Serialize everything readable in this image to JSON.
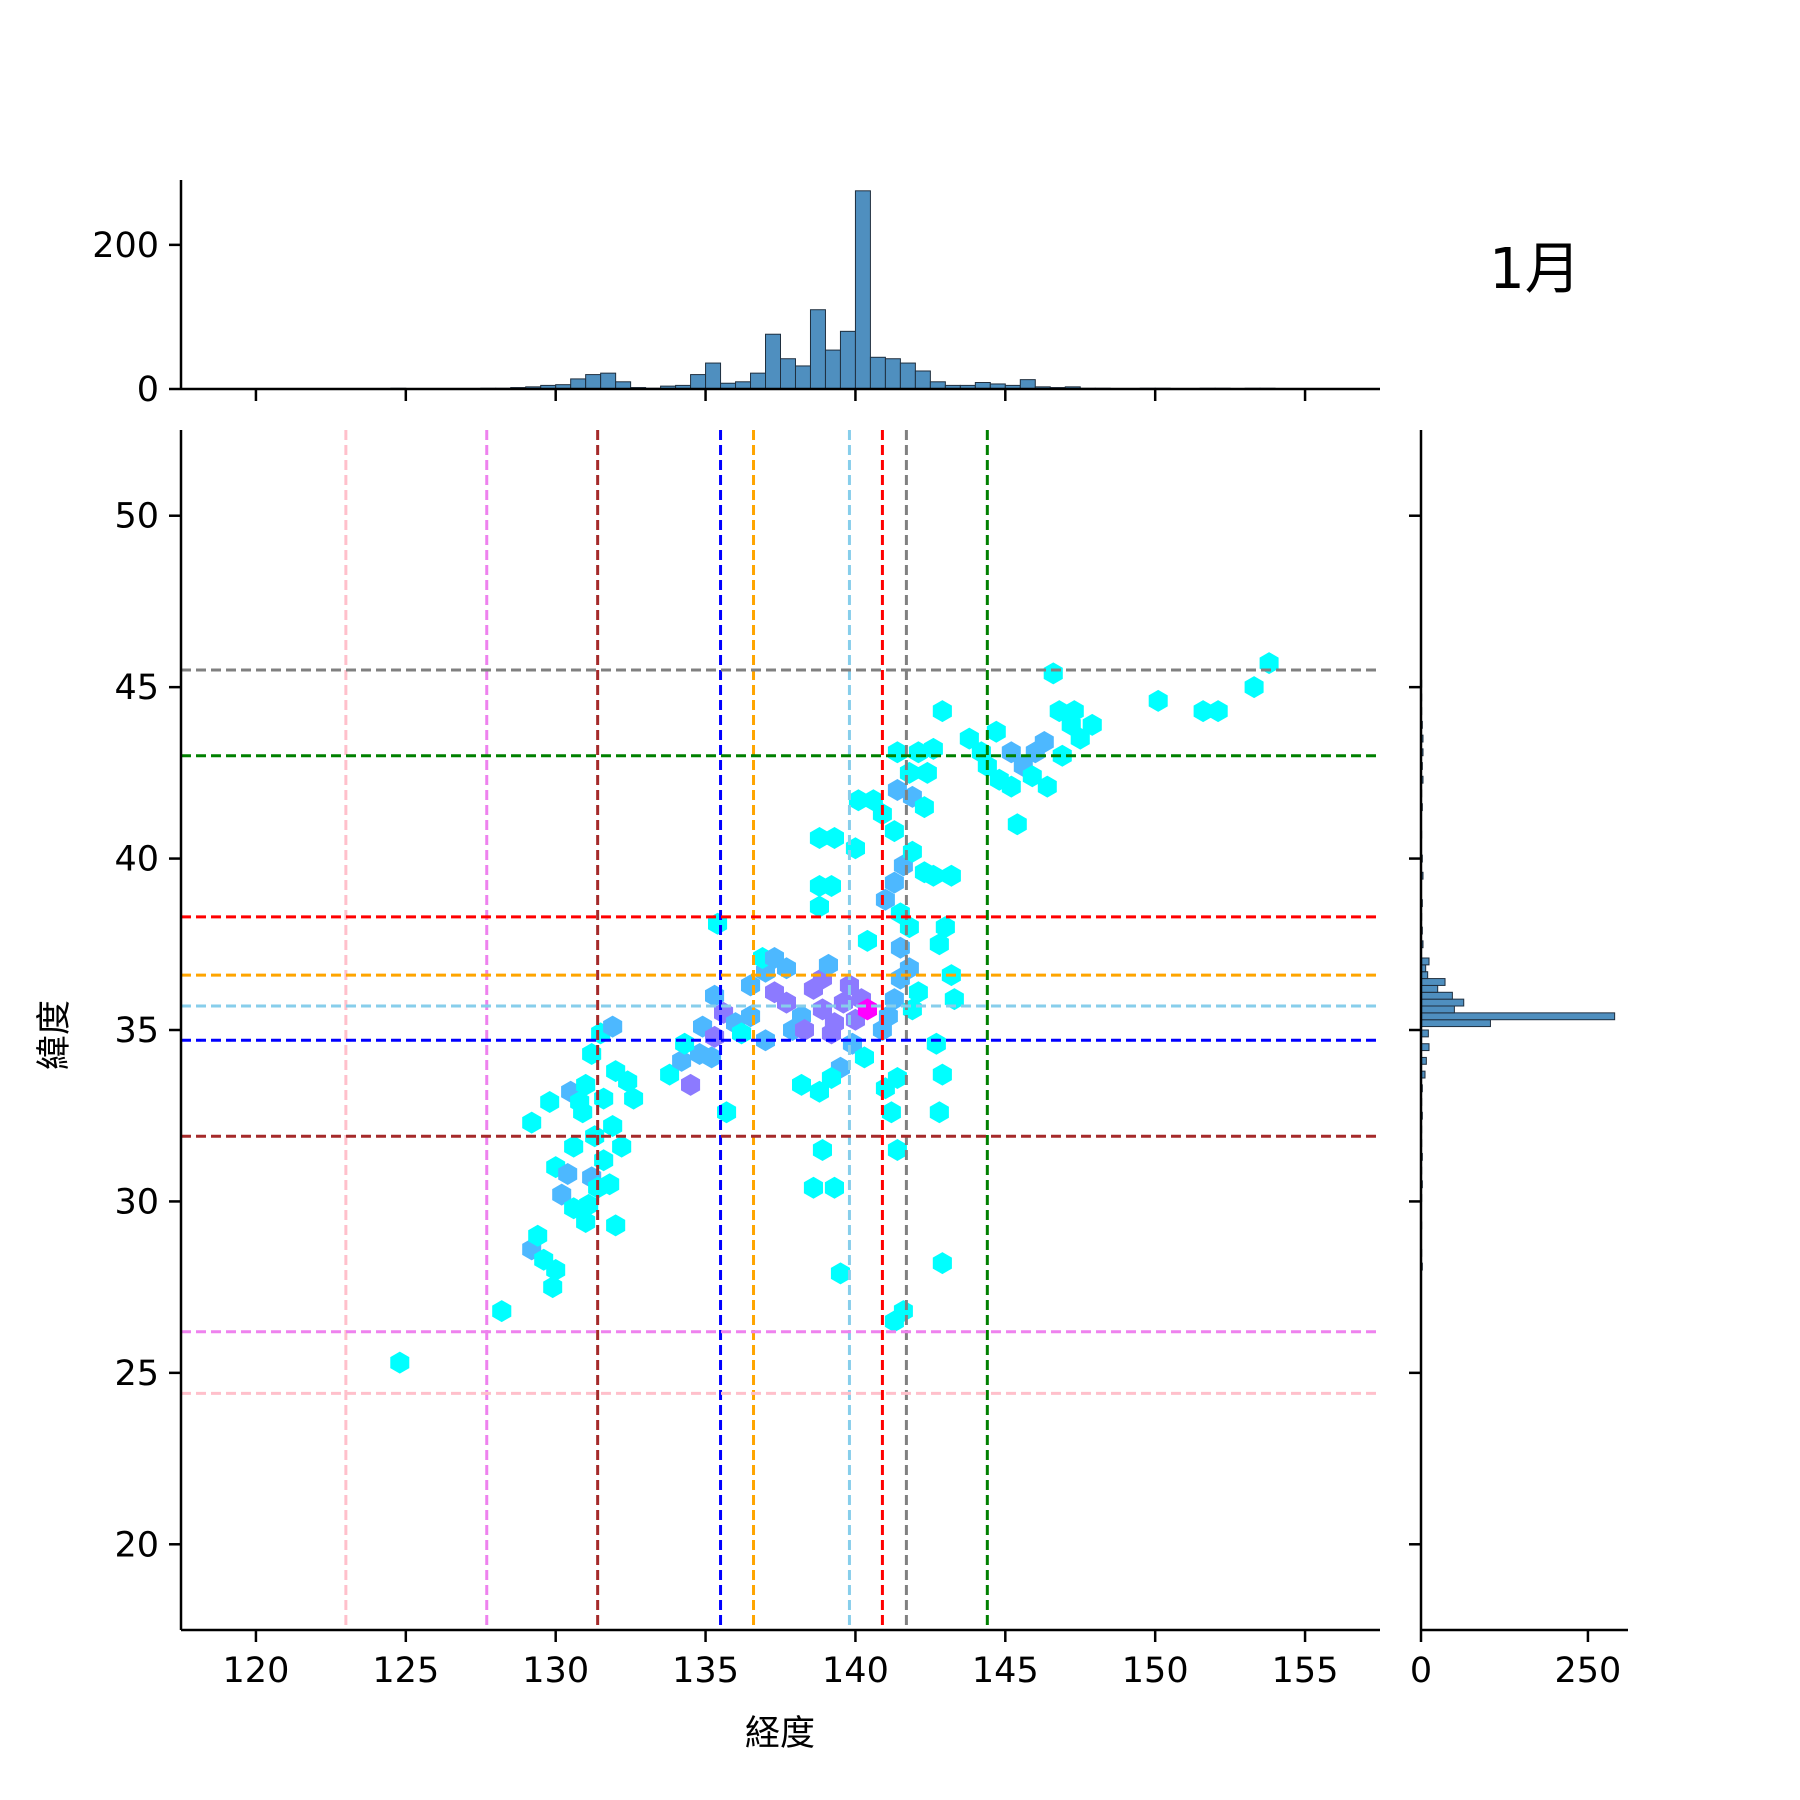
{
  "chart_data": {
    "type": "hexbin",
    "title": "1月",
    "xlabel": "経度",
    "ylabel": "緯度",
    "xlim": [
      117.5,
      157.5
    ],
    "ylim": [
      17.5,
      52.5
    ],
    "xticks": [
      120,
      125,
      130,
      135,
      140,
      145,
      150,
      155
    ],
    "yticks": [
      20,
      25,
      30,
      35,
      40,
      45,
      50
    ],
    "colors": {
      "low": "#00ffff",
      "mid": "#4db8ff",
      "high": "#8c7aff",
      "max": "#ff00ff",
      "hist": "#4f8fbf"
    },
    "vlines": [
      {
        "x": 123.0,
        "color": "#ffc0cb"
      },
      {
        "x": 127.7,
        "color": "#ee82ee"
      },
      {
        "x": 131.4,
        "color": "#a52a2a"
      },
      {
        "x": 135.5,
        "color": "#0000ff"
      },
      {
        "x": 136.6,
        "color": "#ffa500"
      },
      {
        "x": 139.8,
        "color": "#87ceeb"
      },
      {
        "x": 140.9,
        "color": "#ff0000"
      },
      {
        "x": 141.7,
        "color": "#808080"
      },
      {
        "x": 144.4,
        "color": "#008000"
      }
    ],
    "hlines": [
      {
        "y": 45.5,
        "color": "#808080"
      },
      {
        "y": 43.0,
        "color": "#008000"
      },
      {
        "y": 38.3,
        "color": "#ff0000"
      },
      {
        "y": 36.6,
        "color": "#ffa500"
      },
      {
        "y": 35.7,
        "color": "#87ceeb"
      },
      {
        "y": 34.7,
        "color": "#0000ff"
      },
      {
        "y": 31.9,
        "color": "#a52a2a"
      },
      {
        "y": 26.2,
        "color": "#ee82ee"
      },
      {
        "y": 24.4,
        "color": "#ffc0cb"
      }
    ],
    "hexbins": [
      [
        124.8,
        25.3,
        1
      ],
      [
        128.2,
        26.8,
        1
      ],
      [
        129.2,
        28.6,
        2
      ],
      [
        129.6,
        28.3,
        1
      ],
      [
        129.4,
        29.0,
        1
      ],
      [
        130.0,
        28.0,
        1
      ],
      [
        129.9,
        27.5,
        1
      ],
      [
        129.2,
        32.3,
        1
      ],
      [
        129.8,
        32.9,
        1
      ],
      [
        130.2,
        30.2,
        2
      ],
      [
        130.0,
        31.0,
        1
      ],
      [
        130.4,
        30.8,
        2
      ],
      [
        130.6,
        31.6,
        1
      ],
      [
        130.9,
        32.6,
        1
      ],
      [
        130.5,
        33.2,
        2
      ],
      [
        130.8,
        32.9,
        1
      ],
      [
        131.0,
        33.4,
        1
      ],
      [
        131.2,
        34.3,
        1
      ],
      [
        131.5,
        34.9,
        1
      ],
      [
        131.2,
        30.7,
        2
      ],
      [
        131.6,
        31.2,
        1
      ],
      [
        131.8,
        30.5,
        1
      ],
      [
        131.1,
        29.9,
        1
      ],
      [
        131.3,
        31.9,
        1
      ],
      [
        131.9,
        32.2,
        1
      ],
      [
        132.2,
        31.6,
        1
      ],
      [
        132.0,
        29.3,
        1
      ],
      [
        131.9,
        35.1,
        2
      ],
      [
        131.6,
        33.0,
        1
      ],
      [
        132.0,
        33.8,
        1
      ],
      [
        132.4,
        33.5,
        1
      ],
      [
        132.6,
        33.0,
        1
      ],
      [
        131.4,
        30.4,
        1
      ],
      [
        130.6,
        29.8,
        1
      ],
      [
        131.0,
        29.4,
        1
      ],
      [
        133.8,
        33.7,
        1
      ],
      [
        134.2,
        34.1,
        2
      ],
      [
        134.5,
        33.4,
        3
      ],
      [
        134.8,
        34.3,
        2
      ],
      [
        134.3,
        34.6,
        1
      ],
      [
        134.9,
        35.1,
        2
      ],
      [
        135.3,
        34.8,
        3
      ],
      [
        135.6,
        35.5,
        3
      ],
      [
        135.3,
        36.0,
        2
      ],
      [
        135.4,
        38.1,
        1
      ],
      [
        135.7,
        32.6,
        1
      ],
      [
        135.2,
        34.2,
        2
      ],
      [
        136.0,
        35.2,
        2
      ],
      [
        136.5,
        35.4,
        2
      ],
      [
        136.2,
        34.9,
        1
      ],
      [
        137.0,
        34.7,
        2
      ],
      [
        136.5,
        36.3,
        2
      ],
      [
        137.0,
        36.7,
        2
      ],
      [
        136.9,
        37.1,
        1
      ],
      [
        137.3,
        37.1,
        2
      ],
      [
        137.3,
        36.1,
        3
      ],
      [
        137.7,
        35.8,
        3
      ],
      [
        137.7,
        36.8,
        2
      ],
      [
        137.9,
        35.0,
        2
      ],
      [
        138.2,
        35.4,
        2
      ],
      [
        138.3,
        35.0,
        3
      ],
      [
        138.2,
        33.4,
        1
      ],
      [
        138.6,
        36.2,
        3
      ],
      [
        138.9,
        35.6,
        3
      ],
      [
        138.9,
        36.5,
        3
      ],
      [
        139.1,
        36.9,
        2
      ],
      [
        139.3,
        35.2,
        3
      ],
      [
        139.6,
        35.8,
        3
      ],
      [
        139.2,
        34.9,
        3
      ],
      [
        139.8,
        36.3,
        3
      ],
      [
        140.0,
        35.3,
        3
      ],
      [
        140.2,
        35.9,
        3
      ],
      [
        140.4,
        35.6,
        4
      ],
      [
        139.9,
        34.6,
        2
      ],
      [
        140.3,
        34.2,
        1
      ],
      [
        139.5,
        33.9,
        2
      ],
      [
        139.2,
        33.6,
        1
      ],
      [
        138.8,
        33.2,
        1
      ],
      [
        138.9,
        31.5,
        1
      ],
      [
        138.6,
        30.4,
        1
      ],
      [
        139.3,
        30.4,
        1
      ],
      [
        139.5,
        27.9,
        1
      ],
      [
        138.8,
        38.6,
        1
      ],
      [
        138.8,
        39.2,
        1
      ],
      [
        139.2,
        39.2,
        1
      ],
      [
        138.8,
        40.6,
        1
      ],
      [
        139.3,
        40.6,
        1
      ],
      [
        140.0,
        40.3,
        1
      ],
      [
        140.1,
        41.7,
        1
      ],
      [
        140.6,
        41.7,
        1
      ],
      [
        140.4,
        37.6,
        1
      ],
      [
        141.0,
        33.3,
        1
      ],
      [
        141.4,
        33.6,
        1
      ],
      [
        141.2,
        32.6,
        1
      ],
      [
        141.4,
        31.5,
        1
      ],
      [
        140.9,
        35.0,
        2
      ],
      [
        141.1,
        35.4,
        2
      ],
      [
        141.3,
        35.9,
        2
      ],
      [
        141.5,
        36.5,
        2
      ],
      [
        141.8,
        36.8,
        2
      ],
      [
        141.5,
        37.4,
        2
      ],
      [
        141.8,
        38.0,
        1
      ],
      [
        141.5,
        38.4,
        1
      ],
      [
        141.0,
        38.8,
        2
      ],
      [
        141.3,
        39.3,
        2
      ],
      [
        141.6,
        39.8,
        2
      ],
      [
        141.9,
        40.2,
        1
      ],
      [
        141.3,
        40.8,
        1
      ],
      [
        140.9,
        41.3,
        1
      ],
      [
        141.4,
        42.0,
        2
      ],
      [
        141.9,
        41.8,
        2
      ],
      [
        142.3,
        41.5,
        1
      ],
      [
        141.8,
        42.5,
        1
      ],
      [
        142.4,
        42.5,
        1
      ],
      [
        141.4,
        43.1,
        1
      ],
      [
        142.1,
        43.1,
        1
      ],
      [
        142.6,
        43.2,
        1
      ],
      [
        142.3,
        39.6,
        1
      ],
      [
        142.6,
        39.5,
        1
      ],
      [
        143.2,
        39.5,
        1
      ],
      [
        142.8,
        37.5,
        1
      ],
      [
        143.0,
        38.0,
        1
      ],
      [
        143.2,
        36.6,
        1
      ],
      [
        143.3,
        35.9,
        1
      ],
      [
        142.1,
        36.1,
        1
      ],
      [
        141.9,
        35.6,
        1
      ],
      [
        142.7,
        34.6,
        1
      ],
      [
        142.9,
        33.7,
        1
      ],
      [
        142.8,
        32.6,
        1
      ],
      [
        142.9,
        28.2,
        1
      ],
      [
        141.6,
        26.8,
        1
      ],
      [
        141.3,
        26.5,
        1
      ],
      [
        142.9,
        44.3,
        1
      ],
      [
        143.8,
        43.5,
        1
      ],
      [
        144.2,
        43.1,
        1
      ],
      [
        144.4,
        42.7,
        1
      ],
      [
        144.8,
        42.3,
        1
      ],
      [
        145.2,
        42.1,
        1
      ],
      [
        145.4,
        41.0,
        1
      ],
      [
        145.2,
        43.1,
        2
      ],
      [
        145.6,
        42.7,
        2
      ],
      [
        145.9,
        42.4,
        1
      ],
      [
        146.0,
        43.1,
        2
      ],
      [
        146.3,
        43.4,
        2
      ],
      [
        146.6,
        45.4,
        1
      ],
      [
        146.8,
        44.3,
        1
      ],
      [
        147.2,
        43.9,
        1
      ],
      [
        147.5,
        43.5,
        1
      ],
      [
        147.3,
        44.3,
        1
      ],
      [
        147.9,
        43.9,
        1
      ],
      [
        146.4,
        42.1,
        1
      ],
      [
        150.1,
        44.6,
        1
      ],
      [
        151.6,
        44.3,
        1
      ],
      [
        152.1,
        44.3,
        1
      ],
      [
        153.3,
        45.0,
        1
      ],
      [
        153.8,
        45.7,
        1
      ],
      [
        144.7,
        43.7,
        1
      ],
      [
        146.9,
        43.0,
        1
      ]
    ],
    "x_hist": [
      [
        124.75,
        1
      ],
      [
        127.75,
        1
      ],
      [
        128.25,
        1
      ],
      [
        128.75,
        2
      ],
      [
        129.25,
        3
      ],
      [
        129.75,
        5
      ],
      [
        130.25,
        6
      ],
      [
        130.75,
        14
      ],
      [
        131.25,
        20
      ],
      [
        131.75,
        22
      ],
      [
        132.25,
        10
      ],
      [
        132.75,
        2
      ],
      [
        133.25,
        1
      ],
      [
        133.75,
        4
      ],
      [
        134.25,
        5
      ],
      [
        134.75,
        20
      ],
      [
        135.25,
        36
      ],
      [
        135.75,
        8
      ],
      [
        136.25,
        10
      ],
      [
        136.75,
        22
      ],
      [
        137.25,
        76
      ],
      [
        137.75,
        42
      ],
      [
        138.25,
        32
      ],
      [
        138.75,
        110
      ],
      [
        139.25,
        54
      ],
      [
        139.75,
        80
      ],
      [
        140.25,
        275
      ],
      [
        140.75,
        44
      ],
      [
        141.25,
        42
      ],
      [
        141.75,
        36
      ],
      [
        142.25,
        25
      ],
      [
        142.75,
        10
      ],
      [
        143.25,
        5
      ],
      [
        143.75,
        5
      ],
      [
        144.25,
        9
      ],
      [
        144.75,
        7
      ],
      [
        145.25,
        5
      ],
      [
        145.75,
        13
      ],
      [
        146.25,
        3
      ],
      [
        146.75,
        2
      ],
      [
        147.25,
        3
      ],
      [
        147.75,
        1
      ],
      [
        148.25,
        1
      ],
      [
        149.75,
        1
      ],
      [
        150.25,
        1
      ],
      [
        151.75,
        1
      ],
      [
        152.25,
        1
      ],
      [
        153.25,
        1
      ],
      [
        153.75,
        1
      ]
    ],
    "y_hist": [
      [
        28.1,
        2
      ],
      [
        28.5,
        1
      ],
      [
        29.3,
        1
      ],
      [
        30.1,
        1
      ],
      [
        30.5,
        2
      ],
      [
        30.9,
        1
      ],
      [
        31.3,
        2
      ],
      [
        31.7,
        1
      ],
      [
        32.1,
        1
      ],
      [
        32.5,
        2
      ],
      [
        32.9,
        1
      ],
      [
        33.3,
        2
      ],
      [
        33.7,
        6
      ],
      [
        34.1,
        8
      ],
      [
        34.5,
        12
      ],
      [
        34.9,
        11
      ],
      [
        35.2,
        104
      ],
      [
        35.4,
        290
      ],
      [
        35.6,
        50
      ],
      [
        35.8,
        64
      ],
      [
        36.0,
        47
      ],
      [
        36.2,
        25
      ],
      [
        36.4,
        36
      ],
      [
        36.6,
        10
      ],
      [
        36.8,
        7
      ],
      [
        37.0,
        12
      ],
      [
        37.5,
        3
      ],
      [
        37.9,
        2
      ],
      [
        38.3,
        1
      ],
      [
        38.7,
        2
      ],
      [
        39.5,
        3
      ],
      [
        40.0,
        2
      ],
      [
        40.7,
        1
      ],
      [
        41.5,
        2
      ],
      [
        41.9,
        1
      ],
      [
        42.3,
        3
      ],
      [
        42.7,
        2
      ],
      [
        43.1,
        3
      ],
      [
        43.5,
        3
      ],
      [
        43.9,
        2
      ],
      [
        44.3,
        1
      ],
      [
        44.7,
        1
      ],
      [
        45.1,
        1
      ]
    ]
  }
}
